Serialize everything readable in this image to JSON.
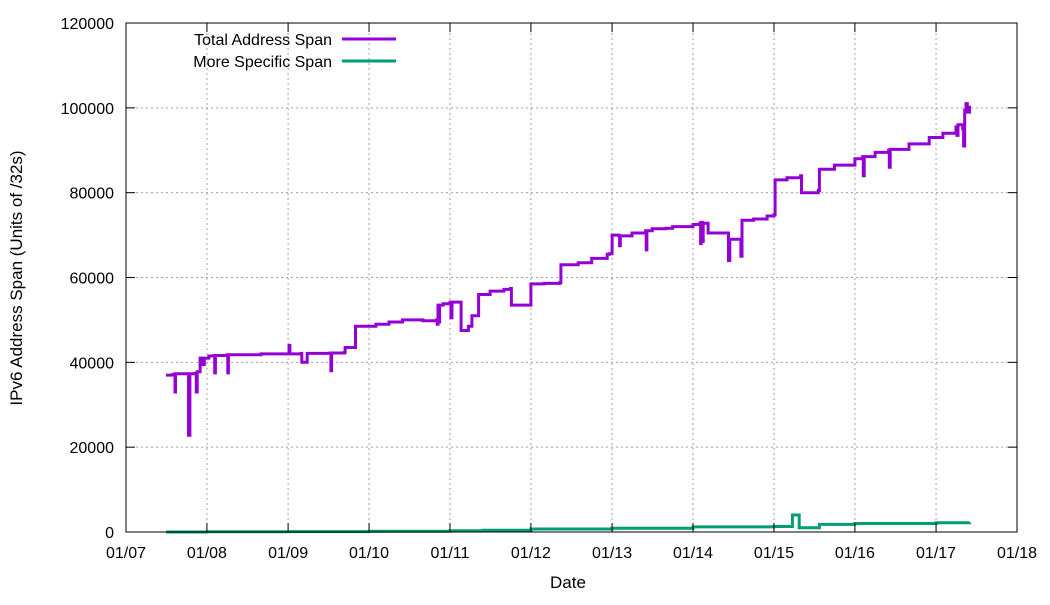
{
  "chart_data": {
    "type": "line",
    "title": "",
    "xlabel": "Date",
    "ylabel": "IPv6 Address Span (Units of /32s)",
    "xlim": [
      "2007-01-01",
      "2018-01-01"
    ],
    "ylim": [
      0,
      120000
    ],
    "grid": true,
    "legend_position": "top-left",
    "x_ticks": [
      "01/07",
      "01/08",
      "01/09",
      "01/10",
      "01/11",
      "01/12",
      "01/13",
      "01/14",
      "01/15",
      "01/16",
      "01/17",
      "01/18"
    ],
    "y_ticks": [
      "0",
      "20000",
      "40000",
      "60000",
      "80000",
      "100000",
      "120000"
    ],
    "series": [
      {
        "name": "Total Address Span",
        "color": "#9400d3",
        "points": [
          [
            "2007-07-01",
            37000
          ],
          [
            "2007-08-01",
            37200
          ],
          [
            "2007-08-10",
            33000
          ],
          [
            "2007-08-12",
            37300
          ],
          [
            "2007-10-05",
            37300
          ],
          [
            "2007-10-10",
            22800
          ],
          [
            "2007-10-16",
            37300
          ],
          [
            "2007-11-10",
            37400
          ],
          [
            "2007-11-14",
            33000
          ],
          [
            "2007-11-18",
            37800
          ],
          [
            "2007-12-01",
            41000
          ],
          [
            "2007-12-10",
            39500
          ],
          [
            "2007-12-20",
            41000
          ],
          [
            "2008-01-10",
            41500
          ],
          [
            "2008-02-01",
            41600
          ],
          [
            "2008-02-05",
            37500
          ],
          [
            "2008-02-08",
            41600
          ],
          [
            "2008-04-01",
            41800
          ],
          [
            "2008-04-04",
            37500
          ],
          [
            "2008-04-07",
            41800
          ],
          [
            "2008-09-01",
            42000
          ],
          [
            "2009-01-01",
            42000
          ],
          [
            "2009-01-05",
            44000
          ],
          [
            "2009-01-09",
            42000
          ],
          [
            "2009-03-01",
            42100
          ],
          [
            "2009-03-04",
            40000
          ],
          [
            "2009-03-25",
            40000
          ],
          [
            "2009-03-28",
            42100
          ],
          [
            "2009-07-10",
            42200
          ],
          [
            "2009-07-13",
            38000
          ],
          [
            "2009-07-16",
            42200
          ],
          [
            "2009-09-10",
            42300
          ],
          [
            "2009-09-15",
            43500
          ],
          [
            "2009-10-25",
            43500
          ],
          [
            "2009-11-01",
            48500
          ],
          [
            "2010-02-01",
            49000
          ],
          [
            "2010-04-01",
            49500
          ],
          [
            "2010-06-01",
            50000
          ],
          [
            "2010-09-01",
            49800
          ],
          [
            "2010-11-01",
            50000
          ],
          [
            "2010-11-05",
            49000
          ],
          [
            "2010-11-08",
            53500
          ],
          [
            "2010-11-12",
            49500
          ],
          [
            "2010-11-15",
            53500
          ],
          [
            "2010-12-01",
            53800
          ],
          [
            "2011-01-01",
            54200
          ],
          [
            "2011-01-05",
            50500
          ],
          [
            "2011-01-10",
            54200
          ],
          [
            "2011-02-15",
            54200
          ],
          [
            "2011-02-20",
            47500
          ],
          [
            "2011-03-25",
            48500
          ],
          [
            "2011-04-10",
            51000
          ],
          [
            "2011-05-05",
            51000
          ],
          [
            "2011-05-10",
            56000
          ],
          [
            "2011-07-01",
            56800
          ],
          [
            "2011-09-01",
            57200
          ],
          [
            "2011-10-01",
            57400
          ],
          [
            "2011-10-05",
            53500
          ],
          [
            "2011-12-25",
            53500
          ],
          [
            "2012-01-01",
            58500
          ],
          [
            "2012-03-01",
            58600
          ],
          [
            "2012-05-10",
            58800
          ],
          [
            "2012-05-15",
            63000
          ],
          [
            "2012-08-01",
            63500
          ],
          [
            "2012-10-01",
            64500
          ],
          [
            "2012-12-10",
            65500
          ],
          [
            "2012-12-20",
            65600
          ],
          [
            "2013-01-01",
            70000
          ],
          [
            "2013-02-01",
            69800
          ],
          [
            "2013-02-04",
            67500
          ],
          [
            "2013-02-07",
            69800
          ],
          [
            "2013-04-01",
            70500
          ],
          [
            "2013-06-01",
            71000
          ],
          [
            "2013-06-04",
            66500
          ],
          [
            "2013-06-07",
            71000
          ],
          [
            "2013-07-01",
            71500
          ],
          [
            "2013-09-01",
            71600
          ],
          [
            "2013-10-01",
            72000
          ],
          [
            "2014-01-01",
            72500
          ],
          [
            "2014-02-01",
            72800
          ],
          [
            "2014-02-04",
            68000
          ],
          [
            "2014-02-07",
            73000
          ],
          [
            "2014-02-12",
            68500
          ],
          [
            "2014-02-16",
            72800
          ],
          [
            "2014-03-05",
            72800
          ],
          [
            "2014-03-10",
            70500
          ],
          [
            "2014-06-05",
            70500
          ],
          [
            "2014-06-10",
            64000
          ],
          [
            "2014-06-16",
            69000
          ],
          [
            "2014-08-01",
            69000
          ],
          [
            "2014-08-05",
            65000
          ],
          [
            "2014-08-10",
            73500
          ],
          [
            "2014-10-01",
            73800
          ],
          [
            "2014-12-01",
            74500
          ],
          [
            "2015-01-01",
            74800
          ],
          [
            "2015-01-06",
            83000
          ],
          [
            "2015-03-01",
            83500
          ],
          [
            "2015-05-01",
            84000
          ],
          [
            "2015-05-05",
            80000
          ],
          [
            "2015-07-20",
            80500
          ],
          [
            "2015-07-25",
            85500
          ],
          [
            "2015-10-01",
            86500
          ],
          [
            "2016-01-01",
            88000
          ],
          [
            "2016-02-05",
            88500
          ],
          [
            "2016-02-08",
            84000
          ],
          [
            "2016-02-12",
            88500
          ],
          [
            "2016-04-01",
            89500
          ],
          [
            "2016-06-01",
            90000
          ],
          [
            "2016-06-04",
            86000
          ],
          [
            "2016-06-08",
            90200
          ],
          [
            "2016-09-01",
            91500
          ],
          [
            "2016-12-01",
            93000
          ],
          [
            "2017-02-01",
            94000
          ],
          [
            "2017-04-01",
            95500
          ],
          [
            "2017-04-05",
            93500
          ],
          [
            "2017-04-10",
            96000
          ],
          [
            "2017-05-01",
            95000
          ],
          [
            "2017-05-05",
            91000
          ],
          [
            "2017-05-10",
            99500
          ],
          [
            "2017-05-16",
            101000
          ],
          [
            "2017-05-22",
            99000
          ],
          [
            "2017-06-01",
            100500
          ]
        ]
      },
      {
        "name": "More Specific Span",
        "color": "#009e73",
        "points": [
          [
            "2007-07-01",
            0
          ],
          [
            "2008-01-01",
            50
          ],
          [
            "2009-01-01",
            100
          ],
          [
            "2010-01-01",
            200
          ],
          [
            "2011-01-01",
            300
          ],
          [
            "2011-06-01",
            400
          ],
          [
            "2012-01-01",
            700
          ],
          [
            "2013-01-01",
            900
          ],
          [
            "2014-01-01",
            1200
          ],
          [
            "2015-01-01",
            1300
          ],
          [
            "2015-03-20",
            1300
          ],
          [
            "2015-03-25",
            4000
          ],
          [
            "2015-04-20",
            4000
          ],
          [
            "2015-04-25",
            1000
          ],
          [
            "2015-07-20",
            1000
          ],
          [
            "2015-07-25",
            1800
          ],
          [
            "2016-01-01",
            2000
          ],
          [
            "2017-01-01",
            2200
          ],
          [
            "2017-06-01",
            2300
          ]
        ]
      }
    ]
  }
}
